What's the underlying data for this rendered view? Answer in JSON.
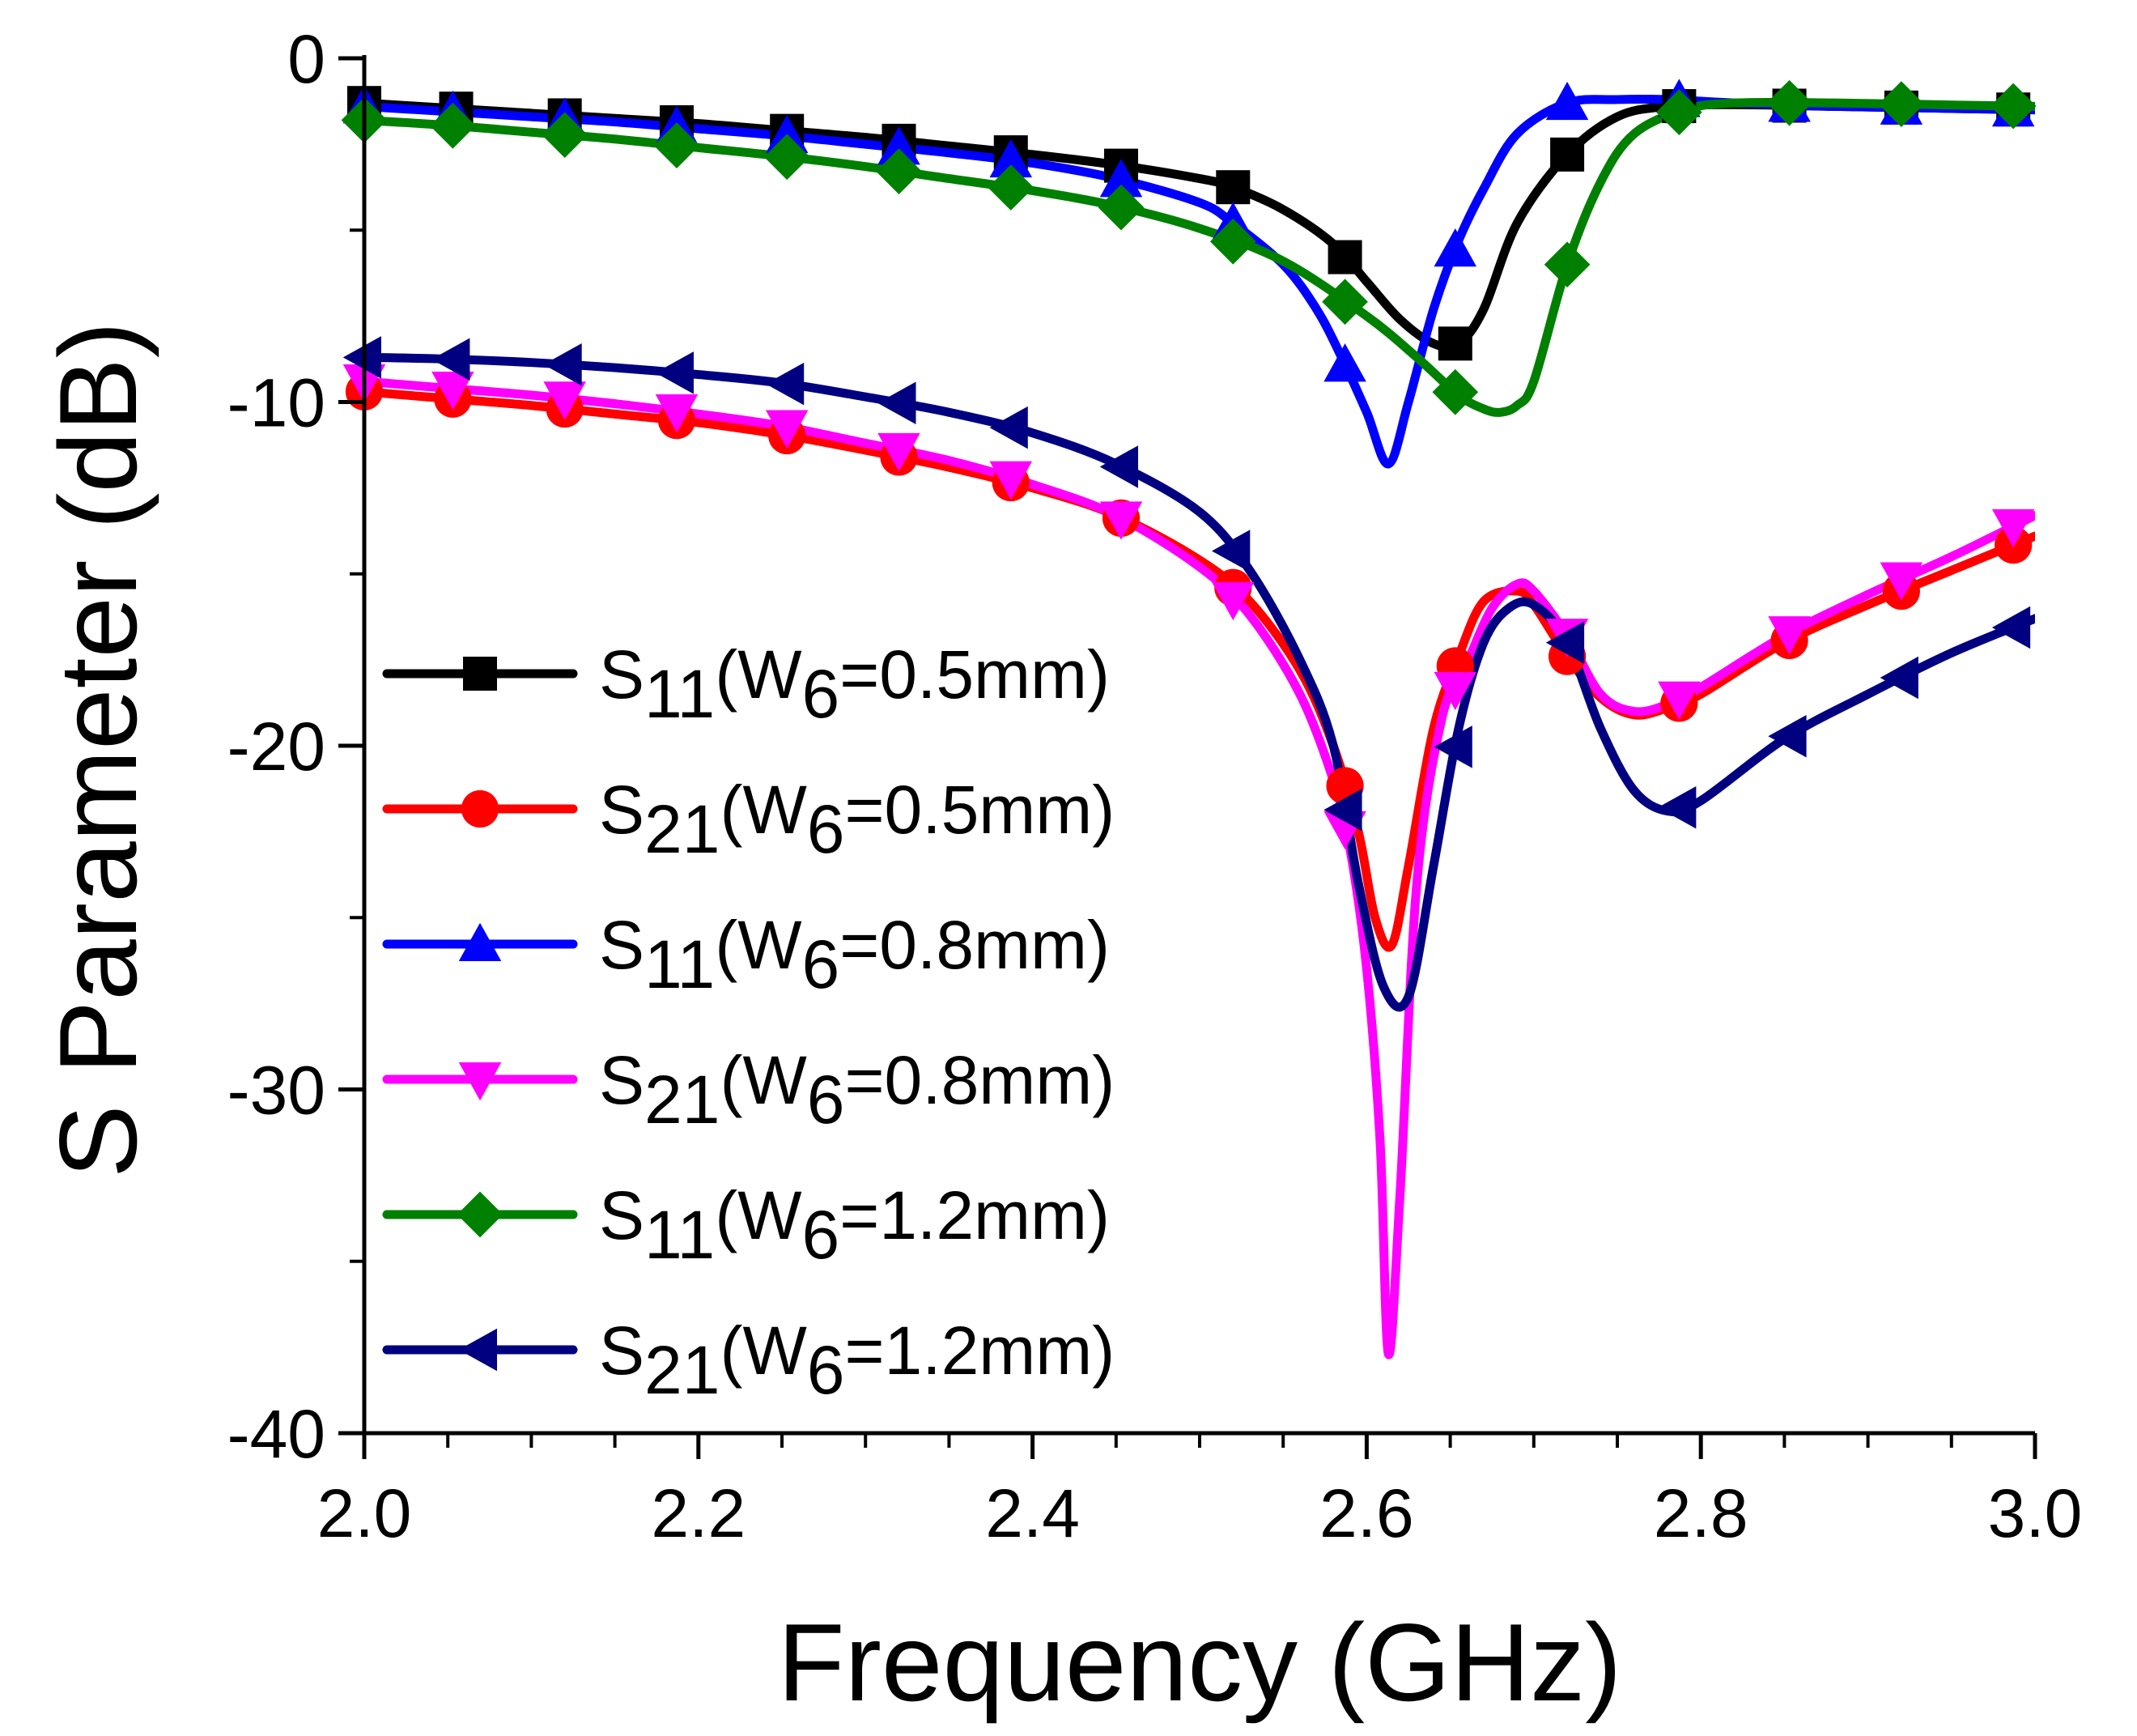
{
  "chart_data": {
    "type": "line",
    "title": "",
    "xlabel": "Frequency (GHz)",
    "ylabel": "S Parameter (dB)",
    "xlim": [
      2.0,
      3.0
    ],
    "ylim": [
      -40,
      0
    ],
    "xticks": [
      2.0,
      2.2,
      2.4,
      2.6,
      2.8,
      3.0
    ],
    "xtick_labels": [
      "2.0",
      "2.2",
      "2.4",
      "2.6",
      "2.8",
      "3.0"
    ],
    "yticks": [
      0,
      -10,
      -20,
      -30,
      -40
    ],
    "ytick_labels": [
      "0",
      "-10",
      "-20",
      "-30",
      "-40"
    ],
    "grid": false,
    "legend_position": "left",
    "series": [
      {
        "name": "S11(W6=0.5mm)",
        "param": "S",
        "param_sub": "11",
        "var": "W",
        "var_sub": "6",
        "value": "=0.5mm",
        "color": "#000000",
        "marker": "square",
        "x": [
          2.0,
          2.05,
          2.1,
          2.15,
          2.2,
          2.25,
          2.3,
          2.35,
          2.4,
          2.45,
          2.5,
          2.52,
          2.55,
          2.58,
          2.6,
          2.62,
          2.64,
          2.655,
          2.67,
          2.69,
          2.72,
          2.75,
          2.78,
          2.82,
          2.88,
          2.94,
          3.0
        ],
        "y": [
          -1.3,
          -1.45,
          -1.6,
          -1.75,
          -1.9,
          -2.1,
          -2.3,
          -2.55,
          -2.8,
          -3.1,
          -3.5,
          -3.75,
          -4.4,
          -5.4,
          -6.5,
          -7.6,
          -8.3,
          -8.3,
          -7.3,
          -4.8,
          -2.8,
          -1.7,
          -1.4,
          -1.35,
          -1.4,
          -1.45,
          -1.5
        ],
        "marker_x": [
          2.0,
          2.055,
          2.12,
          2.187,
          2.253,
          2.32,
          2.387,
          2.453,
          2.52,
          2.587,
          2.653,
          2.72,
          2.787,
          2.853,
          2.92,
          2.987
        ]
      },
      {
        "name": "S21(W6=0.5mm)",
        "param": "S",
        "param_sub": "21",
        "var": "W",
        "var_sub": "6",
        "value": "=0.5mm",
        "color": "#ff0000",
        "marker": "circle",
        "x": [
          2.0,
          2.05,
          2.1,
          2.15,
          2.2,
          2.25,
          2.3,
          2.35,
          2.4,
          2.45,
          2.5,
          2.53,
          2.56,
          2.58,
          2.595,
          2.605,
          2.615,
          2.625,
          2.64,
          2.655,
          2.67,
          2.69,
          2.7,
          2.72,
          2.74,
          2.76,
          2.78,
          2.8,
          2.85,
          2.9,
          2.95,
          3.0
        ],
        "y": [
          -9.7,
          -9.9,
          -10.1,
          -10.35,
          -10.6,
          -10.95,
          -11.4,
          -11.9,
          -12.5,
          -13.3,
          -14.6,
          -15.8,
          -17.8,
          -20.0,
          -22.5,
          -25.0,
          -25.8,
          -23.5,
          -19.5,
          -17.4,
          -15.8,
          -15.5,
          -15.9,
          -17.4,
          -18.6,
          -19.1,
          -18.9,
          -18.5,
          -17.0,
          -15.9,
          -14.9,
          -13.9
        ],
        "marker_x": [
          2.0,
          2.053,
          2.12,
          2.187,
          2.253,
          2.32,
          2.387,
          2.453,
          2.52,
          2.587,
          2.653,
          2.72,
          2.787,
          2.853,
          2.92,
          2.987
        ]
      },
      {
        "name": "S11(W6=0.8mm)",
        "param": "S",
        "param_sub": "11",
        "var": "W",
        "var_sub": "6",
        "value": "=0.8mm",
        "color": "#0000ff",
        "marker": "triangle-up",
        "x": [
          2.0,
          2.05,
          2.1,
          2.15,
          2.2,
          2.25,
          2.3,
          2.35,
          2.4,
          2.45,
          2.5,
          2.52,
          2.55,
          2.57,
          2.585,
          2.6,
          2.613,
          2.625,
          2.64,
          2.655,
          2.67,
          2.69,
          2.72,
          2.75,
          2.78,
          2.82,
          2.88,
          2.94,
          3.0
        ],
        "y": [
          -1.4,
          -1.55,
          -1.7,
          -1.85,
          -2.05,
          -2.25,
          -2.5,
          -2.75,
          -3.05,
          -3.5,
          -4.2,
          -4.8,
          -6.0,
          -7.3,
          -8.7,
          -10.3,
          -11.8,
          -10.0,
          -7.3,
          -5.3,
          -3.8,
          -2.2,
          -1.3,
          -1.2,
          -1.2,
          -1.3,
          -1.4,
          -1.45,
          -1.5
        ],
        "marker_x": [
          2.0,
          2.053,
          2.12,
          2.187,
          2.253,
          2.32,
          2.387,
          2.453,
          2.52,
          2.587,
          2.653,
          2.72,
          2.787,
          2.853,
          2.92,
          2.987
        ]
      },
      {
        "name": "S21(W6=0.8mm)",
        "param": "S",
        "param_sub": "21",
        "var": "W",
        "var_sub": "6",
        "value": "=0.8mm",
        "color": "#ff00ff",
        "marker": "triangle-down",
        "x": [
          2.0,
          2.05,
          2.1,
          2.15,
          2.2,
          2.25,
          2.3,
          2.35,
          2.4,
          2.45,
          2.5,
          2.53,
          2.56,
          2.58,
          2.59,
          2.6,
          2.608,
          2.613,
          2.62,
          2.63,
          2.645,
          2.66,
          2.675,
          2.69,
          2.7,
          2.72,
          2.74,
          2.76,
          2.78,
          2.8,
          2.85,
          2.9,
          2.95,
          3.0
        ],
        "y": [
          -9.4,
          -9.6,
          -9.8,
          -10.05,
          -10.35,
          -10.7,
          -11.2,
          -11.7,
          -12.4,
          -13.3,
          -14.8,
          -16.2,
          -18.5,
          -21.0,
          -23.0,
          -26.5,
          -31.5,
          -37.7,
          -33.0,
          -24.0,
          -19.2,
          -17.6,
          -16.0,
          -15.3,
          -15.5,
          -16.8,
          -18.5,
          -19.0,
          -18.8,
          -18.3,
          -16.8,
          -15.6,
          -14.5,
          -13.3
        ],
        "marker_x": [
          2.0,
          2.053,
          2.12,
          2.187,
          2.253,
          2.32,
          2.387,
          2.453,
          2.52,
          2.587,
          2.653,
          2.72,
          2.787,
          2.853,
          2.92,
          2.987
        ]
      },
      {
        "name": "S11(W6=1.2mm)",
        "param": "S",
        "param_sub": "11",
        "var": "W",
        "var_sub": "6",
        "value": "=1.2mm",
        "color": "#008000",
        "marker": "diamond",
        "x": [
          2.0,
          2.05,
          2.1,
          2.15,
          2.2,
          2.25,
          2.3,
          2.35,
          2.4,
          2.45,
          2.5,
          2.55,
          2.6,
          2.63,
          2.655,
          2.67,
          2.68,
          2.69,
          2.7,
          2.72,
          2.74,
          2.76,
          2.79,
          2.82,
          2.88,
          2.94,
          3.0
        ],
        "y": [
          -1.8,
          -1.95,
          -2.15,
          -2.35,
          -2.6,
          -2.85,
          -3.15,
          -3.5,
          -3.85,
          -4.3,
          -4.95,
          -5.9,
          -7.5,
          -8.7,
          -9.8,
          -10.2,
          -10.3,
          -10.1,
          -9.4,
          -6.0,
          -3.6,
          -2.2,
          -1.5,
          -1.3,
          -1.3,
          -1.35,
          -1.4
        ],
        "marker_x": [
          2.0,
          2.053,
          2.12,
          2.187,
          2.253,
          2.32,
          2.387,
          2.453,
          2.52,
          2.587,
          2.653,
          2.72,
          2.787,
          2.853,
          2.92,
          2.987
        ]
      },
      {
        "name": "S21(W6=1.2mm)",
        "param": "S",
        "param_sub": "21",
        "var": "W",
        "var_sub": "6",
        "value": "=1.2mm",
        "color": "#000080",
        "marker": "triangle-left",
        "x": [
          2.0,
          2.05,
          2.1,
          2.15,
          2.2,
          2.25,
          2.3,
          2.35,
          2.4,
          2.45,
          2.5,
          2.53,
          2.56,
          2.58,
          2.595,
          2.61,
          2.625,
          2.64,
          2.655,
          2.67,
          2.685,
          2.7,
          2.72,
          2.74,
          2.76,
          2.78,
          2.8,
          2.85,
          2.9,
          2.95,
          3.0
        ],
        "y": [
          -8.7,
          -8.75,
          -8.85,
          -9.0,
          -9.2,
          -9.45,
          -9.85,
          -10.3,
          -10.9,
          -11.8,
          -13.2,
          -14.9,
          -17.5,
          -20.0,
          -24.0,
          -27.0,
          -27.3,
          -23.5,
          -19.5,
          -17.0,
          -16.0,
          -15.9,
          -17.0,
          -19.5,
          -21.3,
          -21.9,
          -21.6,
          -19.8,
          -18.5,
          -17.3,
          -16.3
        ],
        "marker_x": [
          2.0,
          2.053,
          2.12,
          2.187,
          2.253,
          2.32,
          2.387,
          2.453,
          2.52,
          2.587,
          2.653,
          2.72,
          2.787,
          2.853,
          2.92,
          2.987
        ]
      }
    ]
  }
}
